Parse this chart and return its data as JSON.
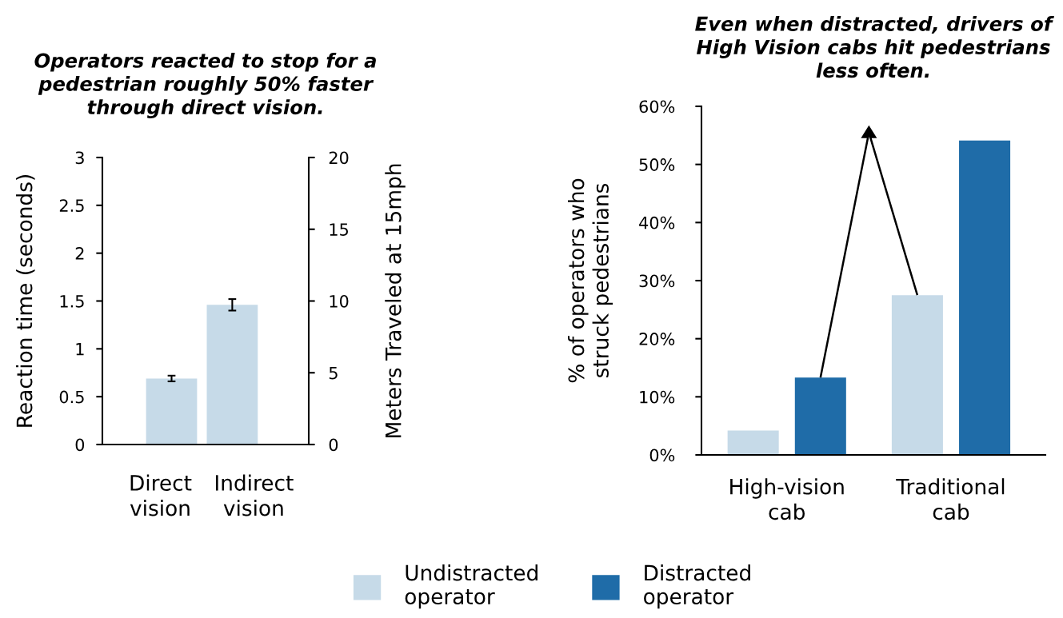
{
  "chart_data": [
    {
      "type": "bar",
      "title": "Operators reacted to stop for a\npedestrian roughly 50% faster\nthrough direct vision.",
      "categories": [
        "Direct\nvision",
        "Indirect\nvision"
      ],
      "series": [
        {
          "color": "#c6dae8",
          "values": [
            0.69,
            1.46
          ],
          "errors": [
            0.03,
            0.06
          ]
        }
      ],
      "ylabel": "Reaction time (seconds)",
      "y2label": "Meters Traveled at 15mph",
      "ylim": [
        0,
        3
      ],
      "yticks": [
        0,
        0.5,
        1,
        1.5,
        2,
        2.5,
        3
      ],
      "y2lim": [
        0,
        20
      ],
      "y2ticks": [
        0,
        5,
        10,
        15,
        20
      ]
    },
    {
      "type": "bar",
      "title": "Even when distracted, drivers of\nHigh Vision cabs hit pedestrians\nless often.",
      "categories": [
        "High-vision\ncab",
        "Traditional\ncab"
      ],
      "series": [
        {
          "name": "Undistracted\noperator",
          "color": "#c6dae8",
          "values": [
            4.2,
            27.5
          ]
        },
        {
          "name": "Distracted\noperator",
          "color": "#1f6ca8",
          "values": [
            13.3,
            54.1
          ]
        }
      ],
      "ylabel": "% of operators who\nstruck pedestrians",
      "ylim": [
        0,
        60
      ],
      "yticks": [
        {
          "value": 0,
          "label": "0%"
        },
        {
          "value": 10,
          "label": "10%"
        },
        {
          "value": 20,
          "label": "20%"
        },
        {
          "value": 30,
          "label": "30%"
        },
        {
          "value": 40,
          "label": "40%"
        },
        {
          "value": 50,
          "label": "50%"
        },
        {
          "value": 60,
          "label": "60%"
        }
      ],
      "legend": "bottom"
    }
  ]
}
